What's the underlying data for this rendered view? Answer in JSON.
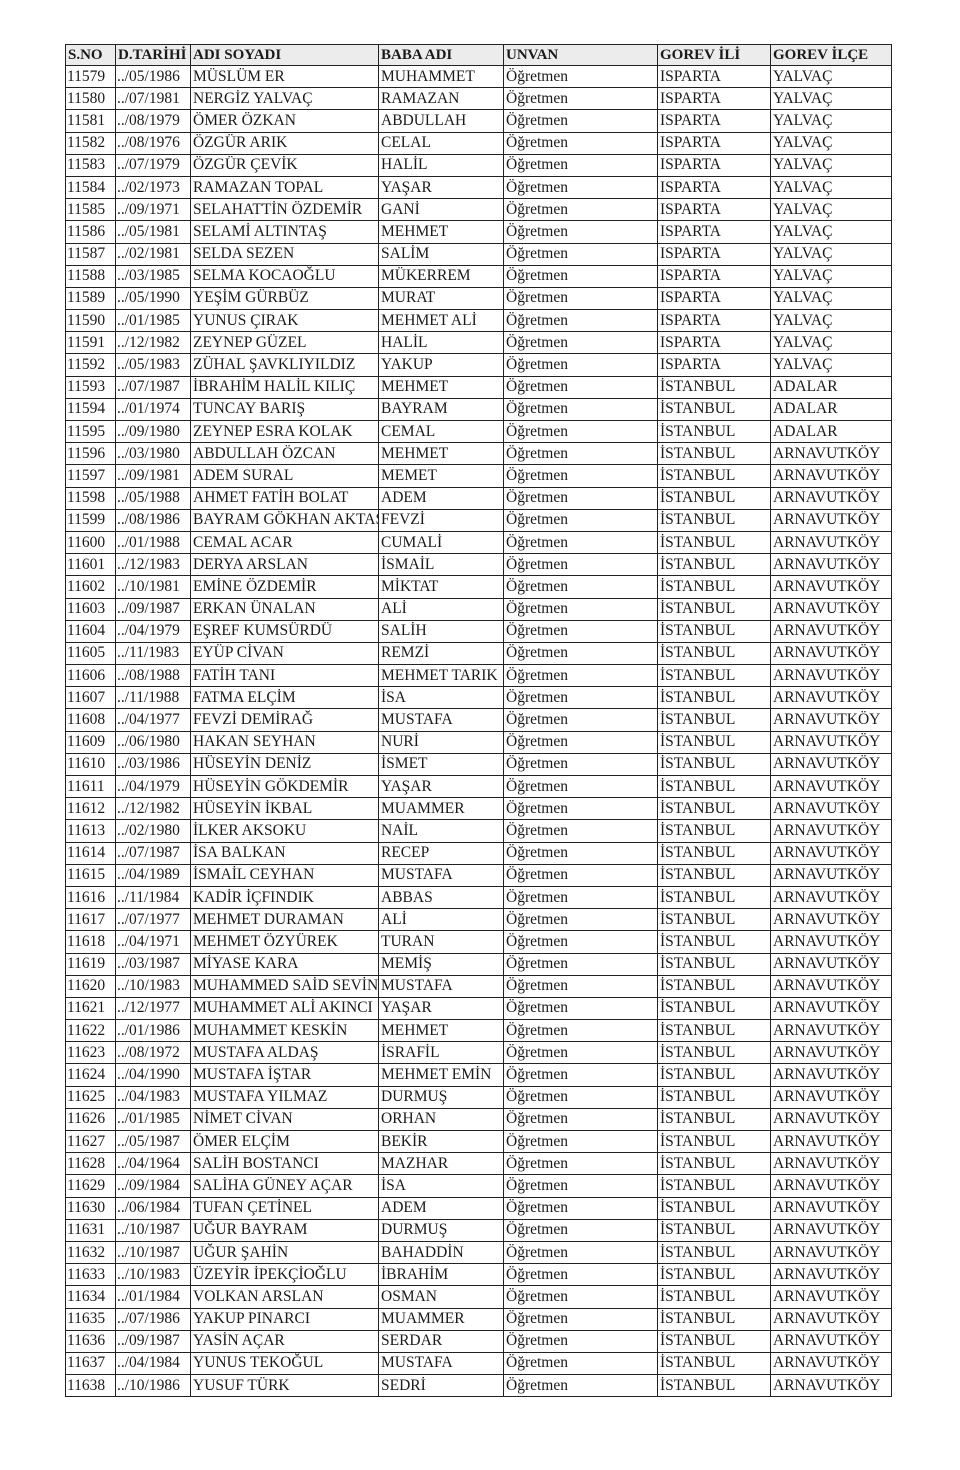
{
  "headers": [
    "S.NO",
    "D.TARİHİ",
    "ADI SOYADI",
    "BABA ADI",
    "UNVAN",
    "GOREV İLİ",
    "GOREV İLÇE"
  ],
  "rows": [
    [
      "11579",
      "../05/1986",
      "MÜSLÜM ER",
      "MUHAMMET",
      "Öğretmen",
      "ISPARTA",
      "YALVAÇ"
    ],
    [
      "11580",
      "../07/1981",
      "NERGİZ YALVAÇ",
      "RAMAZAN",
      "Öğretmen",
      "ISPARTA",
      "YALVAÇ"
    ],
    [
      "11581",
      "../08/1979",
      "ÖMER ÖZKAN",
      "ABDULLAH",
      "Öğretmen",
      "ISPARTA",
      "YALVAÇ"
    ],
    [
      "11582",
      "../08/1976",
      "ÖZGÜR ARIK",
      "CELAL",
      "Öğretmen",
      "ISPARTA",
      "YALVAÇ"
    ],
    [
      "11583",
      "../07/1979",
      "ÖZGÜR ÇEVİK",
      "HALİL",
      "Öğretmen",
      "ISPARTA",
      "YALVAÇ"
    ],
    [
      "11584",
      "../02/1973",
      "RAMAZAN TOPAL",
      "YAŞAR",
      "Öğretmen",
      "ISPARTA",
      "YALVAÇ"
    ],
    [
      "11585",
      "../09/1971",
      "SELAHATTİN ÖZDEMİR",
      "GANİ",
      "Öğretmen",
      "ISPARTA",
      "YALVAÇ"
    ],
    [
      "11586",
      "../05/1981",
      "SELAMİ ALTINTAŞ",
      "MEHMET",
      "Öğretmen",
      "ISPARTA",
      "YALVAÇ"
    ],
    [
      "11587",
      "../02/1981",
      "SELDA SEZEN",
      "SALİM",
      "Öğretmen",
      "ISPARTA",
      "YALVAÇ"
    ],
    [
      "11588",
      "../03/1985",
      "SELMA KOCAOĞLU",
      "MÜKERREM",
      "Öğretmen",
      "ISPARTA",
      "YALVAÇ"
    ],
    [
      "11589",
      "../05/1990",
      "YEŞİM GÜRBÜZ",
      "MURAT",
      "Öğretmen",
      "ISPARTA",
      "YALVAÇ"
    ],
    [
      "11590",
      "../01/1985",
      "YUNUS ÇIRAK",
      "MEHMET ALİ",
      "Öğretmen",
      "ISPARTA",
      "YALVAÇ"
    ],
    [
      "11591",
      "../12/1982",
      "ZEYNEP GÜZEL",
      "HALİL",
      "Öğretmen",
      "ISPARTA",
      "YALVAÇ"
    ],
    [
      "11592",
      "../05/1983",
      "ZÜHAL ŞAVKLIYILDIZ",
      "YAKUP",
      "Öğretmen",
      "ISPARTA",
      "YALVAÇ"
    ],
    [
      "11593",
      "../07/1987",
      "İBRAHİM HALİL KILIÇ",
      "MEHMET",
      "Öğretmen",
      "İSTANBUL",
      "ADALAR"
    ],
    [
      "11594",
      "../01/1974",
      "TUNCAY BARIŞ",
      "BAYRAM",
      "Öğretmen",
      "İSTANBUL",
      "ADALAR"
    ],
    [
      "11595",
      "../09/1980",
      "ZEYNEP ESRA KOLAK",
      "CEMAL",
      "Öğretmen",
      "İSTANBUL",
      "ADALAR"
    ],
    [
      "11596",
      "../03/1980",
      "ABDULLAH ÖZCAN",
      "MEHMET",
      "Öğretmen",
      "İSTANBUL",
      "ARNAVUTKÖY"
    ],
    [
      "11597",
      "../09/1981",
      "ADEM SURAL",
      "MEMET",
      "Öğretmen",
      "İSTANBUL",
      "ARNAVUTKÖY"
    ],
    [
      "11598",
      "../05/1988",
      "AHMET FATİH BOLAT",
      "ADEM",
      "Öğretmen",
      "İSTANBUL",
      "ARNAVUTKÖY"
    ],
    [
      "11599",
      "../08/1986",
      "BAYRAM GÖKHAN AKTAŞ",
      "FEVZİ",
      "Öğretmen",
      "İSTANBUL",
      "ARNAVUTKÖY"
    ],
    [
      "11600",
      "../01/1988",
      "CEMAL ACAR",
      "CUMALİ",
      "Öğretmen",
      "İSTANBUL",
      "ARNAVUTKÖY"
    ],
    [
      "11601",
      "../12/1983",
      "DERYA ARSLAN",
      "İSMAİL",
      "Öğretmen",
      "İSTANBUL",
      "ARNAVUTKÖY"
    ],
    [
      "11602",
      "../10/1981",
      "EMİNE ÖZDEMİR",
      "MİKTAT",
      "Öğretmen",
      "İSTANBUL",
      "ARNAVUTKÖY"
    ],
    [
      "11603",
      "../09/1987",
      "ERKAN ÜNALAN",
      "ALİ",
      "Öğretmen",
      "İSTANBUL",
      "ARNAVUTKÖY"
    ],
    [
      "11604",
      "../04/1979",
      "EŞREF KUMSÜRDÜ",
      "SALİH",
      "Öğretmen",
      "İSTANBUL",
      "ARNAVUTKÖY"
    ],
    [
      "11605",
      "../11/1983",
      "EYÜP CİVAN",
      "REMZİ",
      "Öğretmen",
      "İSTANBUL",
      "ARNAVUTKÖY"
    ],
    [
      "11606",
      "../08/1988",
      "FATİH TANI",
      "MEHMET TARIK",
      "Öğretmen",
      "İSTANBUL",
      "ARNAVUTKÖY"
    ],
    [
      "11607",
      "../11/1988",
      "FATMA ELÇİM",
      "İSA",
      "Öğretmen",
      "İSTANBUL",
      "ARNAVUTKÖY"
    ],
    [
      "11608",
      "../04/1977",
      "FEVZİ DEMİRAĞ",
      "MUSTAFA",
      "Öğretmen",
      "İSTANBUL",
      "ARNAVUTKÖY"
    ],
    [
      "11609",
      "../06/1980",
      "HAKAN SEYHAN",
      "NURİ",
      "Öğretmen",
      "İSTANBUL",
      "ARNAVUTKÖY"
    ],
    [
      "11610",
      "../03/1986",
      "HÜSEYİN DENİZ",
      "İSMET",
      "Öğretmen",
      "İSTANBUL",
      "ARNAVUTKÖY"
    ],
    [
      "11611",
      "../04/1979",
      "HÜSEYİN GÖKDEMİR",
      "YAŞAR",
      "Öğretmen",
      "İSTANBUL",
      "ARNAVUTKÖY"
    ],
    [
      "11612",
      "../12/1982",
      "HÜSEYİN İKBAL",
      "MUAMMER",
      "Öğretmen",
      "İSTANBUL",
      "ARNAVUTKÖY"
    ],
    [
      "11613",
      "../02/1980",
      "İLKER AKSOKU",
      "NAİL",
      "Öğretmen",
      "İSTANBUL",
      "ARNAVUTKÖY"
    ],
    [
      "11614",
      "../07/1987",
      "İSA BALKAN",
      "RECEP",
      "Öğretmen",
      "İSTANBUL",
      "ARNAVUTKÖY"
    ],
    [
      "11615",
      "../04/1989",
      "İSMAİL CEYHAN",
      "MUSTAFA",
      "Öğretmen",
      "İSTANBUL",
      "ARNAVUTKÖY"
    ],
    [
      "11616",
      "../11/1984",
      "KADİR İÇFINDIK",
      "ABBAS",
      "Öğretmen",
      "İSTANBUL",
      "ARNAVUTKÖY"
    ],
    [
      "11617",
      "../07/1977",
      "MEHMET DURAMAN",
      "ALİ",
      "Öğretmen",
      "İSTANBUL",
      "ARNAVUTKÖY"
    ],
    [
      "11618",
      "../04/1971",
      "MEHMET ÖZYÜREK",
      "TURAN",
      "Öğretmen",
      "İSTANBUL",
      "ARNAVUTKÖY"
    ],
    [
      "11619",
      "../03/1987",
      "MİYASE KARA",
      "MEMİŞ",
      "Öğretmen",
      "İSTANBUL",
      "ARNAVUTKÖY"
    ],
    [
      "11620",
      "../10/1983",
      "MUHAMMED SAİD SEVİN",
      "MUSTAFA",
      "Öğretmen",
      "İSTANBUL",
      "ARNAVUTKÖY"
    ],
    [
      "11621",
      "../12/1977",
      "MUHAMMET ALİ AKINCI",
      "YAŞAR",
      "Öğretmen",
      "İSTANBUL",
      "ARNAVUTKÖY"
    ],
    [
      "11622",
      "../01/1986",
      "MUHAMMET KESKİN",
      "MEHMET",
      "Öğretmen",
      "İSTANBUL",
      "ARNAVUTKÖY"
    ],
    [
      "11623",
      "../08/1972",
      "MUSTAFA ALDAŞ",
      "İSRAFİL",
      "Öğretmen",
      "İSTANBUL",
      "ARNAVUTKÖY"
    ],
    [
      "11624",
      "../04/1990",
      "MUSTAFA İŞTAR",
      "MEHMET EMİN",
      "Öğretmen",
      "İSTANBUL",
      "ARNAVUTKÖY"
    ],
    [
      "11625",
      "../04/1983",
      "MUSTAFA YILMAZ",
      "DURMUŞ",
      "Öğretmen",
      "İSTANBUL",
      "ARNAVUTKÖY"
    ],
    [
      "11626",
      "../01/1985",
      "NİMET CİVAN",
      "ORHAN",
      "Öğretmen",
      "İSTANBUL",
      "ARNAVUTKÖY"
    ],
    [
      "11627",
      "../05/1987",
      "ÖMER ELÇİM",
      "BEKİR",
      "Öğretmen",
      "İSTANBUL",
      "ARNAVUTKÖY"
    ],
    [
      "11628",
      "../04/1964",
      "SALİH BOSTANCI",
      "MAZHAR",
      "Öğretmen",
      "İSTANBUL",
      "ARNAVUTKÖY"
    ],
    [
      "11629",
      "../09/1984",
      "SALİHA GÜNEY AÇAR",
      "İSA",
      "Öğretmen",
      "İSTANBUL",
      "ARNAVUTKÖY"
    ],
    [
      "11630",
      "../06/1984",
      "TUFAN ÇETİNEL",
      "ADEM",
      "Öğretmen",
      "İSTANBUL",
      "ARNAVUTKÖY"
    ],
    [
      "11631",
      "../10/1987",
      "UĞUR BAYRAM",
      "DURMUŞ",
      "Öğretmen",
      "İSTANBUL",
      "ARNAVUTKÖY"
    ],
    [
      "11632",
      "../10/1987",
      "UĞUR ŞAHİN",
      "BAHADDİN",
      "Öğretmen",
      "İSTANBUL",
      "ARNAVUTKÖY"
    ],
    [
      "11633",
      "../10/1983",
      "ÜZEYİR İPEKÇİOĞLU",
      "İBRAHİM",
      "Öğretmen",
      "İSTANBUL",
      "ARNAVUTKÖY"
    ],
    [
      "11634",
      "../01/1984",
      "VOLKAN ARSLAN",
      "OSMAN",
      "Öğretmen",
      "İSTANBUL",
      "ARNAVUTKÖY"
    ],
    [
      "11635",
      "../07/1986",
      "YAKUP PINARCI",
      "MUAMMER",
      "Öğretmen",
      "İSTANBUL",
      "ARNAVUTKÖY"
    ],
    [
      "11636",
      "../09/1987",
      "YASİN AÇAR",
      "SERDAR",
      "Öğretmen",
      "İSTANBUL",
      "ARNAVUTKÖY"
    ],
    [
      "11637",
      "../04/1984",
      "YUNUS TEKOĞUL",
      "MUSTAFA",
      "Öğretmen",
      "İSTANBUL",
      "ARNAVUTKÖY"
    ],
    [
      "11638",
      "../10/1986",
      "YUSUF TÜRK",
      "SEDRİ",
      "Öğretmen",
      "İSTANBUL",
      "ARNAVUTKÖY"
    ]
  ]
}
